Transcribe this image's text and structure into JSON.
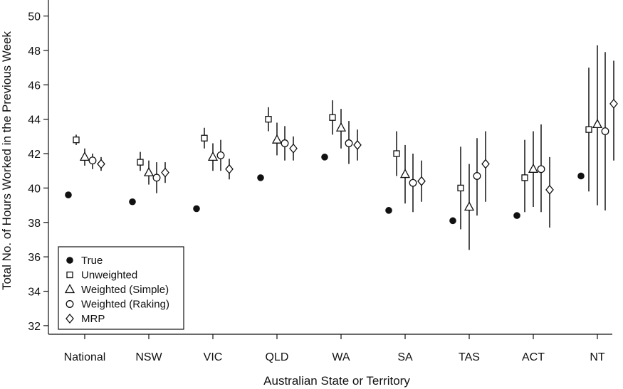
{
  "chart_data": {
    "type": "scatter",
    "title": "",
    "xlabel": "Australian State or Territory",
    "ylabel": "Total No. of Hours Worked in the Previous Week",
    "categories": [
      "National",
      "NSW",
      "VIC",
      "QLD",
      "WA",
      "SA",
      "TAS",
      "ACT",
      "NT"
    ],
    "ylim": [
      31.5,
      50.6
    ],
    "yticks": [
      32,
      34,
      36,
      38,
      40,
      42,
      44,
      46,
      48,
      50
    ],
    "grid": false,
    "legend_position": "bottom-left",
    "series": [
      {
        "name": "True",
        "marker": "filled-circle",
        "values": [
          39.6,
          39.2,
          38.8,
          40.6,
          41.8,
          38.7,
          38.1,
          38.4,
          40.7
        ]
      },
      {
        "name": "Unweighted",
        "marker": "square",
        "values": [
          42.8,
          41.5,
          42.9,
          44.0,
          44.1,
          42.0,
          40.0,
          40.6,
          43.4
        ],
        "lower": [
          42.5,
          41.0,
          42.3,
          43.3,
          43.1,
          40.7,
          37.6,
          38.6,
          39.8
        ],
        "upper": [
          43.1,
          42.1,
          43.5,
          44.7,
          45.1,
          43.3,
          42.4,
          42.8,
          47.0
        ]
      },
      {
        "name": "Weighted (Simple)",
        "marker": "triangle",
        "values": [
          41.8,
          40.9,
          41.8,
          42.8,
          43.5,
          40.8,
          38.9,
          41.1,
          43.7
        ],
        "lower": [
          41.3,
          40.2,
          41.0,
          41.9,
          42.3,
          39.1,
          36.4,
          38.9,
          39.0
        ],
        "upper": [
          42.3,
          41.6,
          42.6,
          43.8,
          44.6,
          42.5,
          41.4,
          43.3,
          48.3
        ]
      },
      {
        "name": "Weighted (Raking)",
        "marker": "circle",
        "values": [
          41.6,
          40.6,
          41.9,
          42.6,
          42.6,
          40.3,
          40.7,
          41.1,
          43.3
        ],
        "lower": [
          41.1,
          39.7,
          41.0,
          41.6,
          41.4,
          38.6,
          38.4,
          38.6,
          38.7
        ],
        "upper": [
          42.0,
          41.5,
          42.8,
          43.6,
          43.9,
          42.0,
          42.9,
          43.7,
          47.9
        ]
      },
      {
        "name": "MRP",
        "marker": "diamond",
        "values": [
          41.4,
          40.9,
          41.1,
          42.3,
          42.5,
          40.4,
          41.4,
          39.9,
          44.9
        ],
        "lower": [
          41.0,
          40.3,
          40.5,
          41.6,
          41.6,
          39.2,
          39.2,
          37.7,
          41.6
        ],
        "upper": [
          41.8,
          41.5,
          41.7,
          43.0,
          43.4,
          41.6,
          43.3,
          41.8,
          47.4
        ]
      }
    ]
  }
}
